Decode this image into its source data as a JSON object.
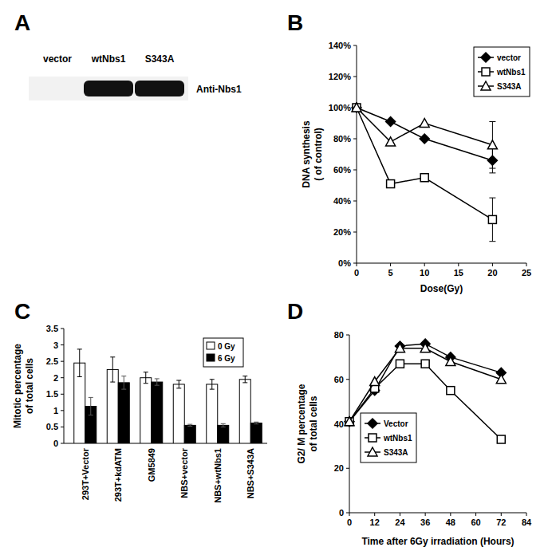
{
  "chart_data": [
    {
      "type": "blot",
      "panel": "A",
      "categories": [
        "vector",
        "wtNbs1",
        "S343A"
      ],
      "values": [
        0,
        100,
        100
      ],
      "label": "Anti-Nbs1"
    },
    {
      "type": "line",
      "panel": "B",
      "xlabel": "Dose(Gy)",
      "ylabel": [
        "DNA synthesis",
        "( of control)"
      ],
      "x": [
        0,
        5,
        10,
        20
      ],
      "series": [
        {
          "name": "vector",
          "color": "#000000",
          "marker": "diamond",
          "values": [
            100,
            91,
            80,
            66
          ],
          "errors": [
            null,
            null,
            null,
            8
          ]
        },
        {
          "name": "wtNbs1",
          "color": "#000000",
          "marker": "open-square",
          "values": [
            100,
            51,
            55,
            28
          ],
          "errors": [
            null,
            null,
            null,
            14
          ]
        },
        {
          "name": "S343A",
          "color": "#000000",
          "marker": "open-triangle",
          "values": [
            100,
            78,
            90,
            76
          ],
          "errors": [
            null,
            null,
            null,
            15
          ]
        }
      ],
      "xlim": [
        0,
        25
      ],
      "xticks": [
        0,
        5,
        10,
        15,
        20,
        25
      ],
      "ylim": [
        0,
        140
      ],
      "yticks": [
        {
          "value": 0,
          "label": "0%"
        },
        {
          "value": 20,
          "label": "20%"
        },
        {
          "value": 40,
          "label": "40%"
        },
        {
          "value": 60,
          "label": "60%"
        },
        {
          "value": 80,
          "label": "80%"
        },
        {
          "value": 100,
          "label": "100%"
        },
        {
          "value": 120,
          "label": "120%"
        },
        {
          "value": 140,
          "label": "140%"
        }
      ],
      "grid": false,
      "legend": "upper right"
    },
    {
      "type": "bar",
      "panel": "C",
      "ylabel": [
        "Mitotic percentage",
        "of total cells"
      ],
      "categories": [
        "293T+Vector",
        "293T+kdATM",
        "GM5849",
        "NBS+vector",
        "NBS+wtNbs1",
        "NBS+S343A"
      ],
      "series": [
        {
          "name": "0 Gy",
          "color": "#ffffff",
          "values": [
            2.45,
            2.25,
            2.0,
            1.8,
            1.8,
            1.95
          ],
          "errors": [
            0.42,
            0.38,
            0.17,
            0.12,
            0.15,
            0.1
          ]
        },
        {
          "name": "6 Gy",
          "color": "#000000",
          "values": [
            1.13,
            1.85,
            1.87,
            0.55,
            0.55,
            0.62
          ],
          "errors": [
            0.27,
            0.2,
            0.1,
            0.03,
            0.05,
            0.03
          ]
        }
      ],
      "ylim": [
        0,
        3.5
      ],
      "yticks": [
        0,
        0.5,
        1,
        1.5,
        2,
        2.5,
        3,
        3.5
      ],
      "grid": false,
      "legend": "upper right"
    },
    {
      "type": "line",
      "panel": "D",
      "xlabel": "Time after 6Gy irradiation (Hours)",
      "ylabel": [
        "G2/ M percentage",
        "of total cells"
      ],
      "x": [
        0,
        12,
        24,
        36,
        48,
        72
      ],
      "series": [
        {
          "name": "Vector",
          "color": "#000000",
          "marker": "diamond",
          "values": [
            41,
            55,
            75,
            76,
            70,
            63
          ]
        },
        {
          "name": "wtNbs1",
          "color": "#000000",
          "marker": "open-square",
          "values": [
            41,
            56,
            67,
            67,
            55,
            33
          ]
        },
        {
          "name": "S343A",
          "color": "#000000",
          "marker": "open-triangle",
          "values": [
            41,
            59,
            74,
            74,
            68,
            60
          ]
        }
      ],
      "xlim": [
        0,
        84
      ],
      "xticks": [
        0,
        12,
        24,
        36,
        48,
        60,
        72,
        84
      ],
      "ylim": [
        0,
        80
      ],
      "yticks": [
        0,
        20,
        40,
        60,
        80
      ],
      "grid": false,
      "legend": "lower left"
    }
  ]
}
